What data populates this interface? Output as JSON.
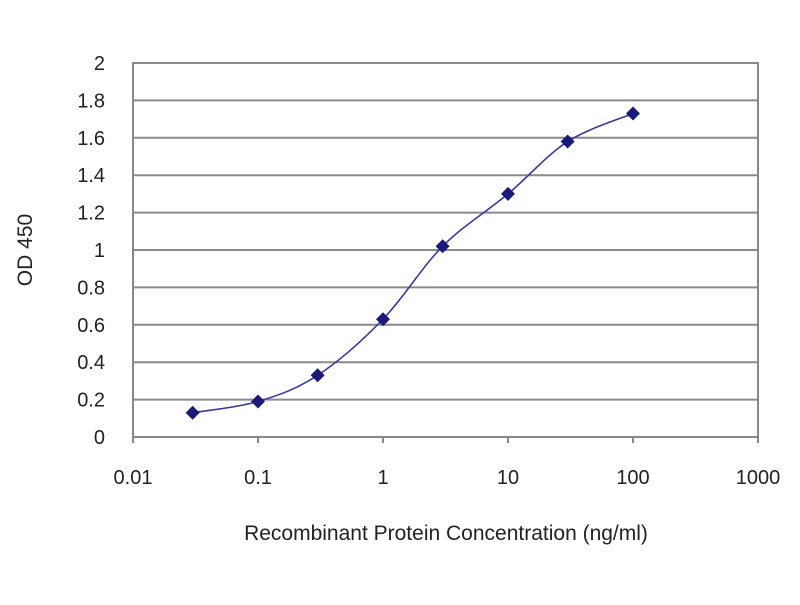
{
  "chart_data": {
    "type": "line",
    "title": "",
    "xlabel": "Recombinant Protein Concentration (ng/ml)",
    "ylabel": "OD 450",
    "x_scale": "log",
    "xlim": [
      0.01,
      1000
    ],
    "ylim": [
      0,
      2
    ],
    "x_ticks": [
      "0.01",
      "0.1",
      "1",
      "10",
      "100",
      "1000"
    ],
    "y_ticks": [
      "0",
      "0.2",
      "0.4",
      "0.6",
      "0.8",
      "1",
      "1.2",
      "1.4",
      "1.6",
      "1.8",
      "2"
    ],
    "grid": "horizontal",
    "legend": "none",
    "series": [
      {
        "x": [
          0.03,
          0.1,
          0.3,
          1,
          3,
          10,
          30,
          100
        ],
        "y": [
          0.13,
          0.19,
          0.33,
          0.63,
          1.02,
          1.3,
          1.58,
          1.73
        ],
        "color": "#1a1a7a"
      }
    ]
  }
}
